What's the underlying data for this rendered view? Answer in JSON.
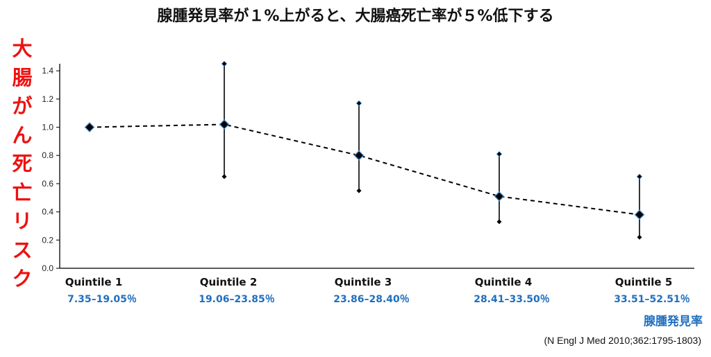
{
  "title": "腺腫発見率が１%上がると、大腸癌死亡率が５%低下する",
  "ylabel_chars": [
    "大",
    "腸",
    "が",
    "ん",
    "死",
    "亡",
    "リ",
    "ス",
    "ク"
  ],
  "xlabel": "腺腫発見率",
  "source": "(N Engl J Med 2010;362:1795-1803)",
  "colors": {
    "title": "#111111",
    "ylabel": "#ee1111",
    "range_text": "#1f6fbf",
    "marker": "#000000"
  },
  "chart_data": {
    "type": "line",
    "categories": [
      "Quintile 1",
      "Quintile 2",
      "Quintile 3",
      "Quintile 4",
      "Quintile 5"
    ],
    "ranges": [
      "7.35–19.05％",
      "19.06–23.85％",
      "23.86–28.40％",
      "28.41–33.50％",
      "33.51–52.51％"
    ],
    "values": [
      1.0,
      1.02,
      0.8,
      0.51,
      0.38
    ],
    "ci_lower": [
      null,
      0.65,
      0.55,
      0.33,
      0.22
    ],
    "ci_upper": [
      null,
      1.45,
      1.17,
      0.81,
      0.65
    ],
    "yticks": [
      "0.0",
      "0.2",
      "0.4",
      "0.6",
      "0.8",
      "1.0",
      "1.2",
      "1.4"
    ],
    "ylim": [
      0,
      1.45
    ],
    "grid": false,
    "line_style": "dashed"
  }
}
